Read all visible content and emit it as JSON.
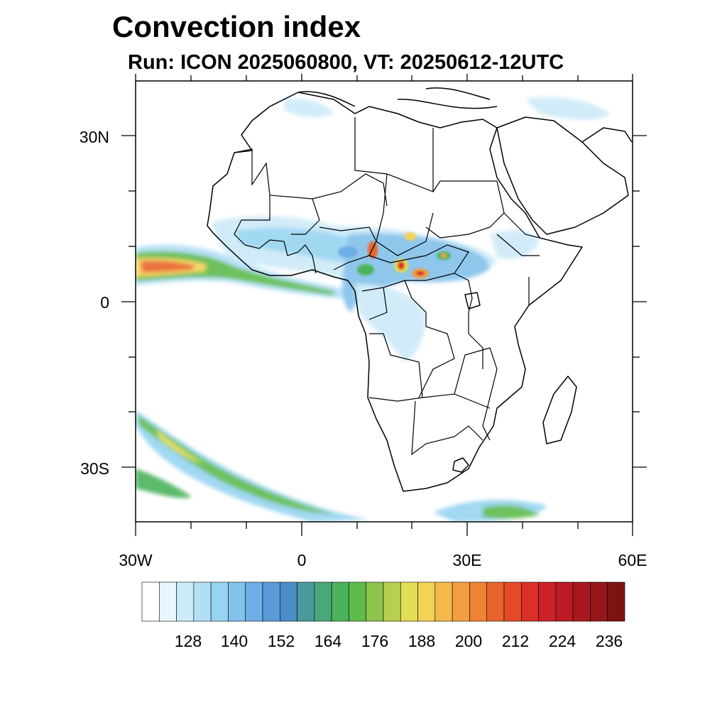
{
  "title": "Convection index",
  "subtitle": "Run: ICON 2025060800,  VT: 20250612-12UTC",
  "lat_labels": [
    "30N",
    "0",
    "30S"
  ],
  "lon_labels": [
    "30W",
    "0",
    "30E",
    "60E"
  ],
  "colorbar": {
    "labels": [
      "128",
      "140",
      "152",
      "164",
      "176",
      "188",
      "200",
      "212",
      "224",
      "236"
    ],
    "colors": [
      "#ffffff",
      "#e9f5fc",
      "#cdeaf8",
      "#b2dff5",
      "#97d4f1",
      "#83c2eb",
      "#6eaee4",
      "#5a9ad9",
      "#4a8cc6",
      "#4a9a9c",
      "#4aa779",
      "#4bb35c",
      "#5fbb4c",
      "#8dc54e",
      "#b7cf50",
      "#e3dd55",
      "#f4d255",
      "#f5b94b",
      "#f39f3f",
      "#ef8234",
      "#e9642c",
      "#e24a2a",
      "#d93028",
      "#cd2227",
      "#ba1b24",
      "#a8191f",
      "#961719",
      "#7e1412"
    ]
  }
}
